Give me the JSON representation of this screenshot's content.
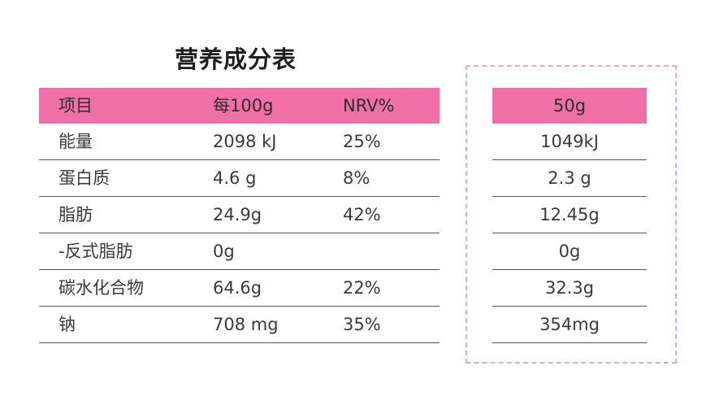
{
  "title": "营养成分表",
  "columns": [
    "项目",
    "每100g",
    "NRV%"
  ],
  "rows": [
    {
      "item": "能量",
      "per100g": "2098 kJ",
      "nrv": "25%"
    },
    {
      "item": "蛋白质",
      "per100g": "4.6 g",
      "nrv": "8%"
    },
    {
      "item": "脂肪",
      "per100g": "24.9g",
      "nrv": "42%"
    },
    {
      "item": "-反式脂肪",
      "per100g": "0g",
      "nrv": ""
    },
    {
      "item": "碳水化合物",
      "per100g": "64.6g",
      "nrv": "22%"
    },
    {
      "item": "钠",
      "per100g": "708 mg",
      "nrv": "35%"
    }
  ],
  "side": {
    "header": "50g",
    "values": [
      "1049kJ",
      "2.3 g",
      "12.45g",
      "0g",
      "32.3g",
      "354mg"
    ]
  },
  "colors": {
    "header_pink": "#f06fa6",
    "dashed_border": "#f5a3c4"
  }
}
